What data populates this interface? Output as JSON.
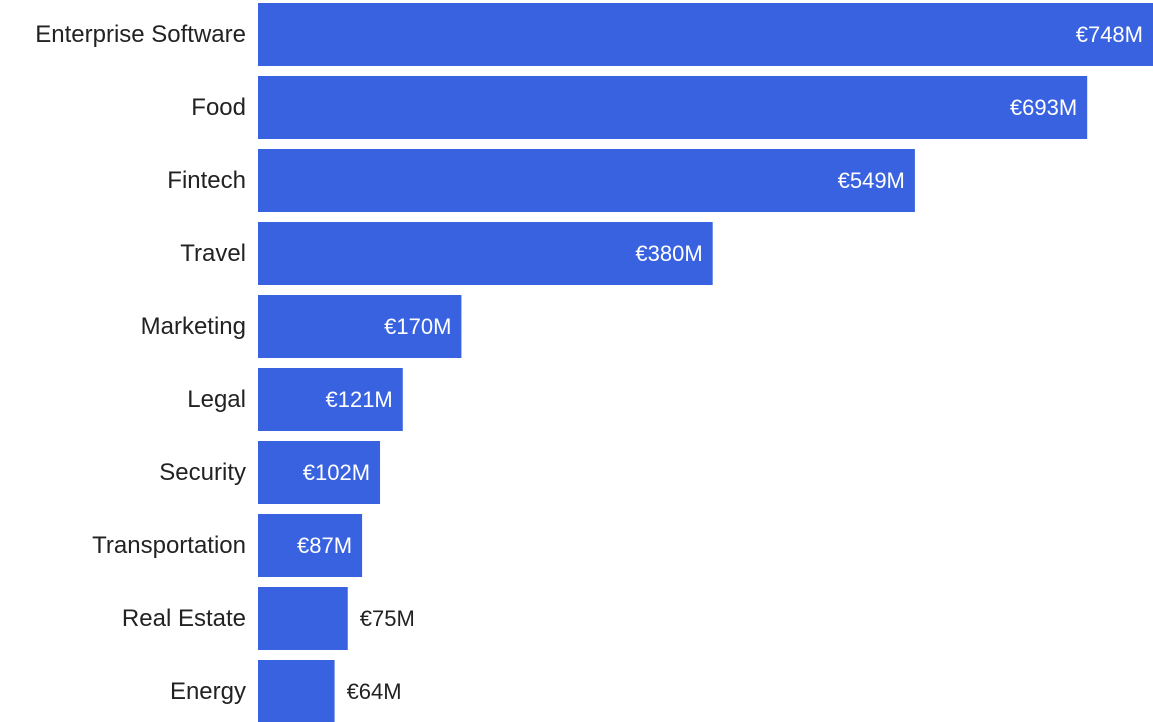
{
  "chart_data": {
    "type": "bar",
    "orientation": "horizontal",
    "categories": [
      "Enterprise Software",
      "Food",
      "Fintech",
      "Travel",
      "Marketing",
      "Legal",
      "Security",
      "Transportation",
      "Real Estate",
      "Energy"
    ],
    "values": [
      748,
      693,
      549,
      380,
      170,
      121,
      102,
      87,
      75,
      64
    ],
    "value_labels": [
      "€748M",
      "€693M",
      "€549M",
      "€380M",
      "€170M",
      "€121M",
      "€102M",
      "€87M",
      "€75M",
      "€64M"
    ],
    "title": "",
    "xlabel": "",
    "ylabel": "",
    "xlim": [
      0,
      748
    ],
    "grid": false,
    "colors": {
      "bar": "#3862e0",
      "label_inside": "#ffffff",
      "label_outside": "#222222",
      "category_text": "#222222"
    }
  }
}
